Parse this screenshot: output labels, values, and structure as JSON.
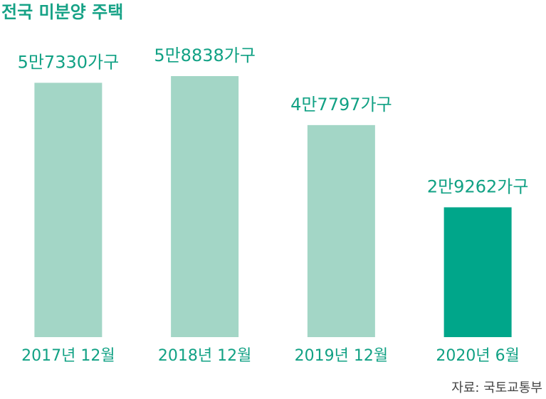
{
  "chart_data": {
    "type": "bar",
    "title": "전국 미분양 주택",
    "categories": [
      "2017년 12월",
      "2018년 12월",
      "2019년 12월",
      "2020년 6월"
    ],
    "values": [
      57330,
      58838,
      47797,
      29262
    ],
    "value_labels": [
      "5만7330가구",
      "5만8838가구",
      "4만7797가구",
      "2만9262가구"
    ],
    "colors": [
      "#a3d6c6",
      "#a3d6c6",
      "#a3d6c6",
      "#00a68a"
    ],
    "source": "자료: 국토교통부"
  }
}
